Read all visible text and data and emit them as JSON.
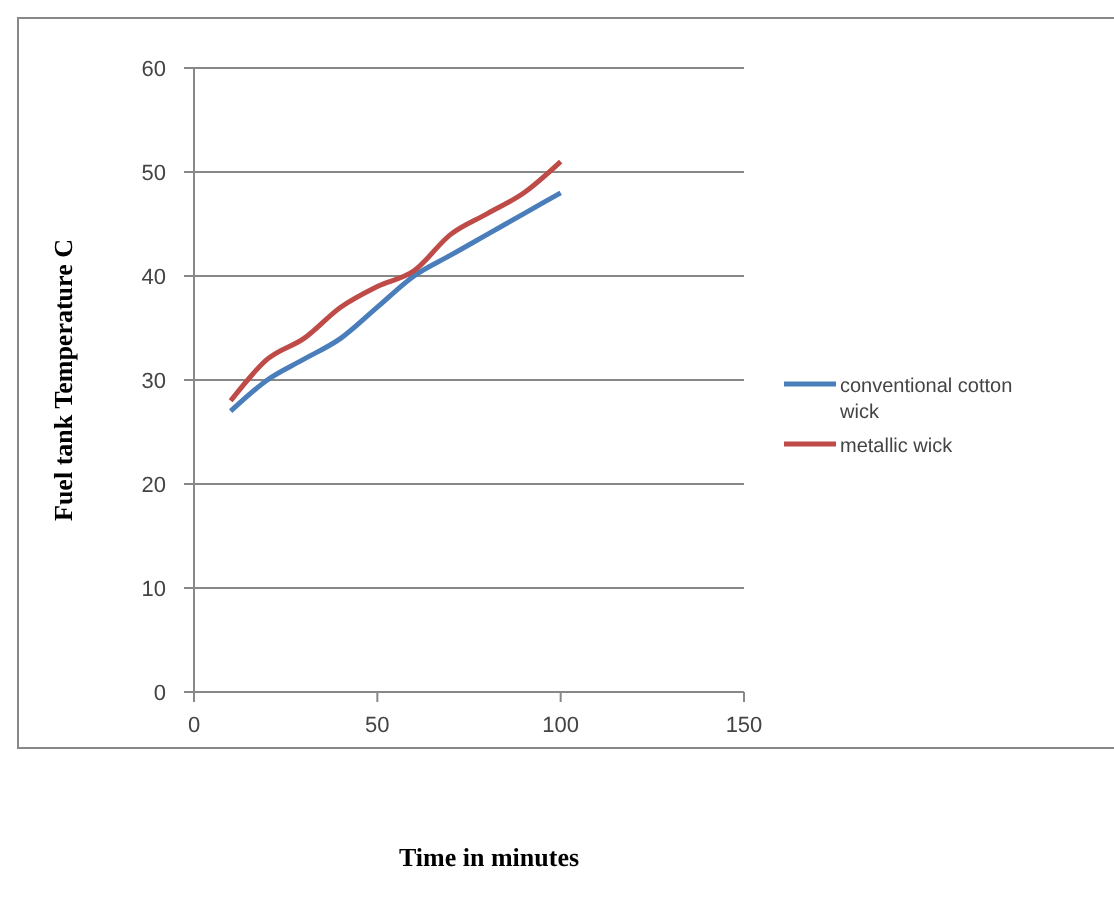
{
  "chart_data": {
    "type": "line",
    "xlabel": "Time in minutes",
    "ylabel": "Fuel tank Temperature C",
    "x": [
      10,
      20,
      30,
      40,
      50,
      60,
      70,
      80,
      90,
      100
    ],
    "series": [
      {
        "name": "conventional cotton wick",
        "color": "#4a7ebb",
        "values": [
          27,
          30,
          32,
          34,
          37,
          40,
          42,
          44,
          46,
          48
        ]
      },
      {
        "name": "metallic wick",
        "color": "#be4b48",
        "values": [
          28,
          32,
          34,
          37,
          39,
          40.5,
          44,
          46,
          48,
          51
        ]
      }
    ],
    "xlim": [
      0,
      150
    ],
    "xticks": [
      0,
      50,
      100,
      150
    ],
    "ylim": [
      0,
      60
    ],
    "yticks": [
      0,
      10,
      20,
      30,
      40,
      50,
      60
    ],
    "grid": "y",
    "legend": "right",
    "marker": "none",
    "line_style": "solid"
  }
}
